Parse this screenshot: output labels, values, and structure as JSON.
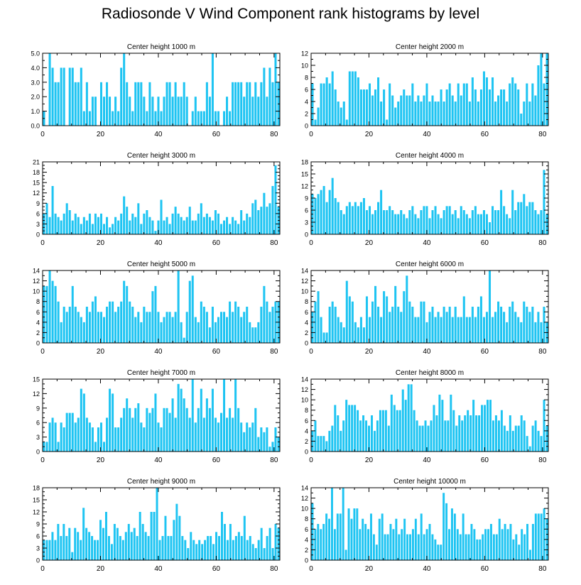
{
  "title": "Radiosonde V Wind Component rank histograms by level",
  "colors": {
    "bar": "#1ec4f2",
    "axis": "#000000"
  },
  "chart_data": [
    {
      "type": "bar",
      "title": "Center height 1000 m",
      "xlabel": "",
      "ylabel": "",
      "xlim": [
        0,
        82
      ],
      "ylim": [
        0,
        5
      ],
      "xticks": [
        0,
        20,
        40,
        60,
        80
      ],
      "yticks": [
        0,
        1,
        2,
        3,
        4,
        5
      ],
      "ytick_labels": [
        "0.0",
        "1.0",
        "2.0",
        "3.0",
        "4.0",
        "5.0"
      ],
      "values": [
        1,
        0,
        5,
        4,
        3,
        3,
        4,
        4,
        0,
        4,
        4,
        3,
        3,
        4,
        1,
        3,
        1,
        2,
        2,
        0,
        3,
        2,
        3,
        2,
        1,
        2,
        1,
        4,
        5,
        3,
        2,
        1,
        3,
        3,
        3,
        2,
        1,
        3,
        2,
        1,
        2,
        1,
        2,
        3,
        3,
        2,
        3,
        2,
        2,
        3,
        2,
        0,
        1,
        2,
        1,
        1,
        1,
        3,
        2,
        5,
        1,
        1,
        0,
        1,
        2,
        1,
        3,
        3,
        3,
        3,
        2,
        3,
        3,
        2,
        3,
        2,
        3,
        4,
        2,
        4,
        3,
        5,
        3
      ]
    },
    {
      "type": "bar",
      "title": "Center height 2000 m",
      "xlabel": "",
      "ylabel": "",
      "xlim": [
        0,
        82
      ],
      "ylim": [
        0,
        12
      ],
      "xticks": [
        0,
        20,
        40,
        60,
        80
      ],
      "yticks": [
        0,
        2,
        4,
        6,
        8,
        10,
        12
      ],
      "ytick_labels": [
        "0",
        "2",
        "4",
        "6",
        "8",
        "10",
        "12"
      ],
      "values": [
        7,
        1,
        3,
        7,
        7,
        8,
        7,
        9,
        6,
        4,
        3,
        4,
        1,
        9,
        9,
        9,
        8,
        6,
        6,
        6,
        7,
        5,
        6,
        8,
        4,
        6,
        1,
        7,
        5,
        3,
        4,
        5,
        6,
        5,
        5,
        7,
        4,
        5,
        4,
        5,
        7,
        4,
        5,
        4,
        4,
        6,
        4,
        6,
        7,
        5,
        4,
        7,
        5,
        7,
        7,
        4,
        8,
        6,
        4,
        6,
        9,
        8,
        6,
        8,
        4,
        5,
        6,
        6,
        4,
        7,
        8,
        7,
        6,
        2,
        4,
        7,
        4,
        7,
        5,
        10,
        12,
        7,
        12
      ]
    },
    {
      "type": "bar",
      "title": "Center height 3000 m",
      "xlabel": "",
      "ylabel": "",
      "xlim": [
        0,
        82
      ],
      "ylim": [
        0,
        21
      ],
      "xticks": [
        0,
        20,
        40,
        60,
        80
      ],
      "yticks": [
        0,
        3,
        6,
        9,
        12,
        15,
        18,
        21
      ],
      "ytick_labels": [
        "0",
        "3",
        "6",
        "9",
        "12",
        "15",
        "18",
        "21"
      ],
      "values": [
        6,
        9,
        5,
        14,
        6,
        5,
        4,
        6,
        9,
        7,
        4,
        6,
        5,
        3,
        5,
        4,
        6,
        3,
        6,
        5,
        6,
        3,
        5,
        2,
        3,
        5,
        4,
        6,
        11,
        8,
        4,
        6,
        5,
        9,
        3,
        6,
        7,
        5,
        4,
        1,
        4,
        10,
        4,
        5,
        3,
        6,
        8,
        6,
        5,
        4,
        5,
        8,
        4,
        4,
        6,
        9,
        5,
        6,
        5,
        4,
        7,
        6,
        3,
        4,
        5,
        3,
        5,
        4,
        3,
        7,
        4,
        6,
        5,
        9,
        10,
        7,
        8,
        12,
        8,
        9,
        14,
        20,
        8
      ]
    },
    {
      "type": "bar",
      "title": "Center height 4000 m",
      "xlabel": "",
      "ylabel": "",
      "xlim": [
        0,
        82
      ],
      "ylim": [
        0,
        18
      ],
      "xticks": [
        0,
        20,
        40,
        60,
        80
      ],
      "yticks": [
        0,
        3,
        6,
        9,
        12,
        15,
        18
      ],
      "ytick_labels": [
        "0",
        "3",
        "6",
        "9",
        "12",
        "15",
        "18"
      ],
      "values": [
        10,
        9,
        10,
        11,
        12,
        8,
        11,
        14,
        9,
        8,
        6,
        5,
        7,
        8,
        7,
        8,
        7,
        8,
        9,
        6,
        7,
        5,
        6,
        8,
        11,
        6,
        6,
        7,
        6,
        5,
        5,
        6,
        5,
        4,
        6,
        7,
        5,
        4,
        6,
        7,
        7,
        4,
        6,
        7,
        5,
        4,
        6,
        7,
        7,
        5,
        6,
        4,
        7,
        6,
        5,
        4,
        6,
        7,
        5,
        5,
        6,
        5,
        3,
        7,
        6,
        6,
        11,
        7,
        5,
        4,
        11,
        6,
        8,
        8,
        10,
        7,
        8,
        8,
        6,
        5,
        6,
        16,
        5
      ]
    },
    {
      "type": "bar",
      "title": "Center height 5000 m",
      "xlabel": "",
      "ylabel": "",
      "xlim": [
        0,
        82
      ],
      "ylim": [
        0,
        14
      ],
      "xticks": [
        0,
        20,
        40,
        60,
        80
      ],
      "yticks": [
        0,
        2,
        4,
        6,
        8,
        10,
        12,
        14
      ],
      "ytick_labels": [
        "0",
        "2",
        "4",
        "6",
        "8",
        "10",
        "12",
        "14"
      ],
      "values": [
        11,
        11,
        14,
        12,
        11,
        8,
        4,
        7,
        6,
        7,
        11,
        7,
        6,
        5,
        4,
        7,
        6,
        8,
        9,
        6,
        6,
        5,
        7,
        8,
        8,
        6,
        7,
        8,
        12,
        11,
        8,
        7,
        5,
        6,
        4,
        7,
        6,
        6,
        10,
        11,
        6,
        4,
        5,
        6,
        6,
        5,
        6,
        14,
        4,
        1,
        6,
        12,
        13,
        5,
        4,
        8,
        7,
        6,
        3,
        7,
        4,
        5,
        6,
        6,
        5,
        8,
        6,
        8,
        7,
        5,
        6,
        7,
        4,
        3,
        3,
        4,
        7,
        11,
        8,
        6,
        7,
        8,
        8
      ]
    },
    {
      "type": "bar",
      "title": "Center height 6000 m",
      "xlabel": "",
      "ylabel": "",
      "xlim": [
        0,
        82
      ],
      "ylim": [
        0,
        14
      ],
      "xticks": [
        0,
        20,
        40,
        60,
        80
      ],
      "yticks": [
        0,
        2,
        4,
        6,
        8,
        10,
        12,
        14
      ],
      "ytick_labels": [
        "0",
        "2",
        "4",
        "6",
        "8",
        "10",
        "12",
        "14"
      ],
      "values": [
        6,
        8,
        10,
        5,
        2,
        2,
        7,
        8,
        7,
        5,
        4,
        3,
        12,
        9,
        8,
        4,
        3,
        5,
        3,
        9,
        5,
        8,
        11,
        7,
        5,
        10,
        9,
        6,
        7,
        11,
        7,
        6,
        10,
        13,
        8,
        7,
        5,
        5,
        8,
        8,
        4,
        6,
        7,
        5,
        6,
        5,
        7,
        6,
        7,
        5,
        7,
        5,
        5,
        9,
        5,
        5,
        7,
        5,
        7,
        9,
        5,
        6,
        14,
        5,
        6,
        8,
        7,
        6,
        4,
        7,
        8,
        6,
        5,
        4,
        8,
        7,
        6,
        7,
        4,
        6,
        4,
        7,
        4
      ]
    },
    {
      "type": "bar",
      "title": "Center height 7000 m",
      "xlabel": "",
      "ylabel": "",
      "xlim": [
        0,
        82
      ],
      "ylim": [
        0,
        15
      ],
      "xticks": [
        0,
        20,
        40,
        60,
        80
      ],
      "yticks": [
        0,
        3,
        6,
        9,
        12,
        15
      ],
      "ytick_labels": [
        "0",
        "3",
        "6",
        "9",
        "12",
        "15"
      ],
      "values": [
        2,
        2,
        6,
        7,
        6,
        2,
        6,
        5,
        8,
        8,
        8,
        6,
        7,
        13,
        12,
        7,
        6,
        5,
        2,
        5,
        6,
        2,
        7,
        13,
        12,
        5,
        5,
        7,
        9,
        11,
        9,
        7,
        9,
        10,
        6,
        5,
        9,
        8,
        9,
        12,
        6,
        5,
        9,
        9,
        8,
        11,
        7,
        14,
        13,
        11,
        9,
        7,
        15,
        6,
        9,
        13,
        7,
        11,
        9,
        13,
        7,
        6,
        8,
        15,
        7,
        9,
        7,
        15,
        9,
        6,
        4,
        6,
        5,
        6,
        9,
        3,
        5,
        4,
        5,
        1,
        2,
        5,
        3
      ]
    },
    {
      "type": "bar",
      "title": "Center height 8000 m",
      "xlabel": "",
      "ylabel": "",
      "xlim": [
        0,
        82
      ],
      "ylim": [
        0,
        14
      ],
      "xticks": [
        0,
        20,
        40,
        60,
        80
      ],
      "yticks": [
        0,
        2,
        4,
        6,
        8,
        10,
        12,
        14
      ],
      "ytick_labels": [
        "0",
        "2",
        "4",
        "6",
        "8",
        "10",
        "12",
        "14"
      ],
      "values": [
        4,
        6,
        3,
        3,
        3,
        2,
        4,
        5,
        9,
        7,
        4,
        6,
        10,
        9,
        9,
        9,
        8,
        6,
        7,
        6,
        5,
        7,
        4,
        6,
        8,
        8,
        8,
        5,
        11,
        9,
        8,
        8,
        12,
        10,
        13,
        13,
        8,
        6,
        5,
        5,
        6,
        5,
        6,
        9,
        7,
        11,
        10,
        6,
        6,
        11,
        8,
        5,
        7,
        6,
        7,
        8,
        7,
        10,
        7,
        7,
        9,
        9,
        10,
        10,
        6,
        7,
        6,
        8,
        5,
        4,
        7,
        4,
        5,
        5,
        7,
        6,
        3,
        1,
        5,
        6,
        4,
        3,
        10,
        5
      ]
    },
    {
      "type": "bar",
      "title": "Center height 9000 m",
      "xlabel": "",
      "ylabel": "",
      "xlim": [
        0,
        82
      ],
      "ylim": [
        0,
        18
      ],
      "xticks": [
        0,
        20,
        40,
        60,
        80
      ],
      "yticks": [
        0,
        3,
        6,
        9,
        12,
        15,
        18
      ],
      "ytick_labels": [
        "0",
        "3",
        "6",
        "9",
        "12",
        "15",
        "18"
      ],
      "values": [
        5,
        5,
        5,
        7,
        5,
        9,
        6,
        9,
        6,
        8,
        2,
        8,
        7,
        5,
        13,
        8,
        7,
        6,
        5,
        5,
        10,
        8,
        12,
        6,
        4,
        9,
        8,
        6,
        5,
        7,
        9,
        7,
        8,
        6,
        12,
        9,
        7,
        6,
        12,
        12,
        18,
        5,
        6,
        11,
        6,
        6,
        10,
        14,
        11,
        6,
        5,
        3,
        7,
        5,
        4,
        5,
        4,
        5,
        6,
        6,
        4,
        7,
        6,
        12,
        9,
        5,
        9,
        5,
        6,
        7,
        6,
        11,
        5,
        6,
        4,
        3,
        5,
        8,
        3,
        6,
        8,
        3,
        9,
        8
      ]
    },
    {
      "type": "bar",
      "title": "Center height 10000 m",
      "xlabel": "",
      "ylabel": "",
      "xlim": [
        0,
        82
      ],
      "ylim": [
        0,
        14
      ],
      "xticks": [
        0,
        20,
        40,
        60,
        80
      ],
      "yticks": [
        0,
        2,
        4,
        6,
        8,
        10,
        12,
        14
      ],
      "ytick_labels": [
        "0",
        "2",
        "4",
        "6",
        "8",
        "10",
        "12",
        "14"
      ],
      "values": [
        11,
        6,
        7,
        6,
        7,
        9,
        8,
        14,
        6,
        9,
        9,
        14,
        2,
        10,
        8,
        10,
        10,
        6,
        8,
        7,
        6,
        9,
        5,
        3,
        8,
        9,
        5,
        5,
        7,
        6,
        8,
        5,
        6,
        8,
        5,
        5,
        6,
        8,
        5,
        9,
        5,
        6,
        7,
        5,
        4,
        3,
        3,
        13,
        11,
        6,
        10,
        9,
        6,
        5,
        9,
        5,
        5,
        7,
        6,
        4,
        4,
        5,
        6,
        6,
        7,
        5,
        5,
        8,
        6,
        7,
        6,
        7,
        4,
        5,
        3,
        6,
        5,
        7,
        2,
        7,
        9,
        9,
        9,
        10,
        8
      ]
    }
  ]
}
